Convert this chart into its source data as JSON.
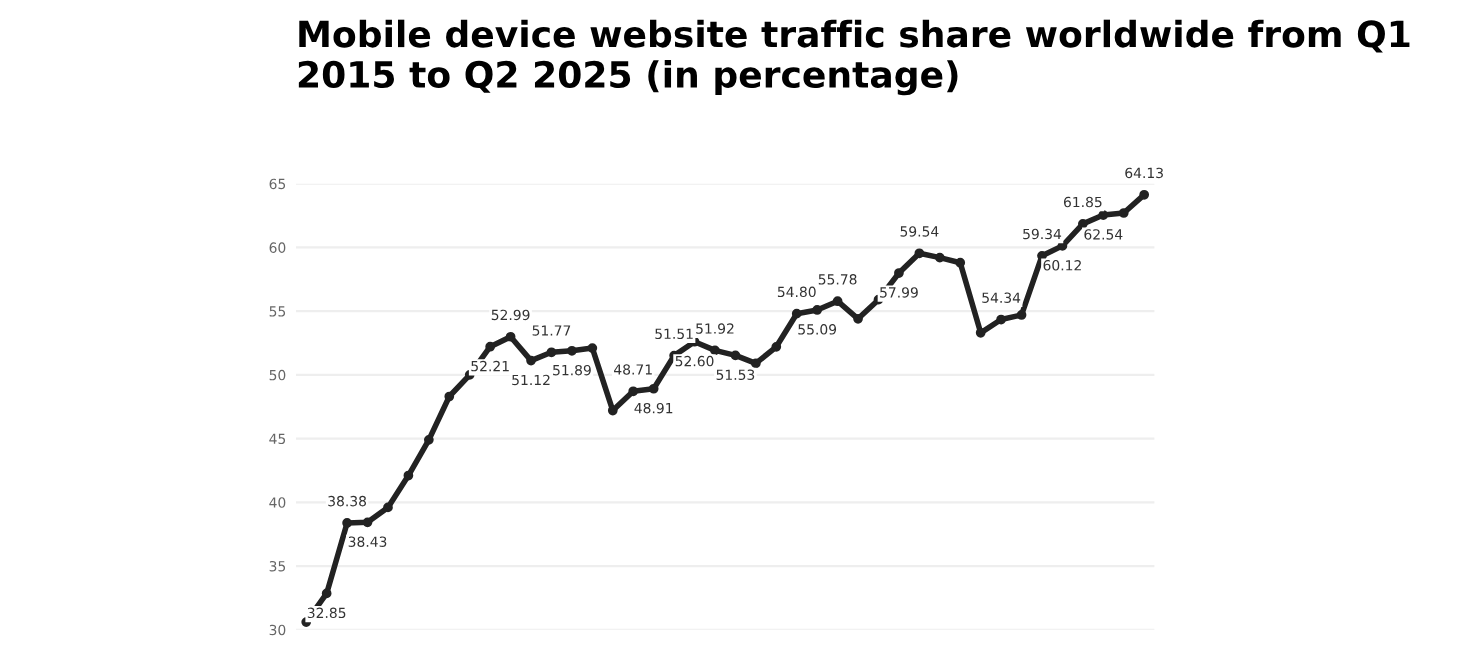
{
  "chart_data": {
    "type": "line",
    "title": "Mobile device website traffic share worldwide from Q1 2015 to Q2 2025 (in percentage)",
    "categories": [
      null,
      null,
      null,
      null,
      null,
      null,
      null,
      null,
      null,
      null,
      null,
      null,
      null,
      null,
      null,
      null,
      null,
      null,
      null,
      null,
      null,
      null,
      null,
      null,
      null,
      null,
      null,
      null,
      null,
      null,
      null,
      null,
      null,
      null,
      null,
      null,
      null,
      null,
      null,
      null,
      null,
      null
    ],
    "series": [
      {
        "color": "#222222",
        "values": [
          30.6,
          32.85,
          38.38,
          38.43,
          39.6,
          42.1,
          44.9,
          48.3,
          50.0,
          52.21,
          52.99,
          51.12,
          51.77,
          51.89,
          52.1,
          47.2,
          48.71,
          48.91,
          51.51,
          52.6,
          51.92,
          51.53,
          50.9,
          52.2,
          54.8,
          55.09,
          55.78,
          54.4,
          55.9,
          57.99,
          59.54,
          59.2,
          58.8,
          53.3,
          54.34,
          54.7,
          59.34,
          60.12,
          61.85,
          62.54,
          62.7,
          64.13
        ],
        "value_labels": [
          null,
          "32.85",
          "38.38",
          "38.43",
          null,
          null,
          null,
          null,
          null,
          "52.21",
          "52.99",
          "51.12",
          "51.77",
          "51.89",
          null,
          null,
          "48.71",
          "48.91",
          "51.51",
          "52.60",
          "51.92",
          "51.53",
          null,
          null,
          "54.80",
          "55.09",
          "55.78",
          null,
          null,
          "57.99",
          "59.54",
          null,
          null,
          null,
          "54.34",
          null,
          "59.34",
          "60.12",
          "61.85",
          "62.54",
          null,
          "64.13"
        ]
      }
    ],
    "ylim": [
      30,
      65
    ],
    "yticks": [
      30,
      35,
      40,
      45,
      50,
      55,
      60,
      65
    ],
    "grid": "y",
    "marker": "circle",
    "line_style": "solid",
    "legend": false
  }
}
